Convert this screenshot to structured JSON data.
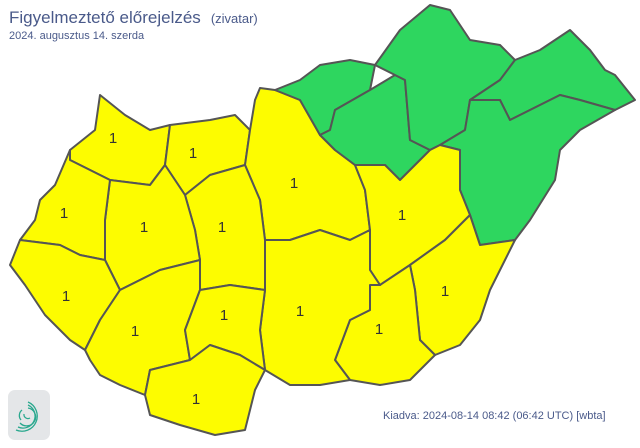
{
  "header": {
    "title": "Figyelmeztető előrejelzés",
    "phenomenon": "(zivatar)",
    "date": "2024. augusztus 14. szerda"
  },
  "footer": {
    "issued": "Kiadva: 2024-08-14 08:42 (06:42 UTC) [wbta]"
  },
  "colors": {
    "level_0": "#2ed65f",
    "level_1": "#fdfc00",
    "border": "#555555"
  },
  "logo": {
    "icon": "spiral-logo-icon"
  },
  "regions": [
    {
      "level": 1,
      "label": "1"
    },
    {
      "level": 1,
      "label": "1"
    },
    {
      "level": 1,
      "label": "1"
    },
    {
      "level": 0
    },
    {
      "level": 0
    },
    {
      "level": 0
    },
    {
      "level": 0
    },
    {
      "level": 0
    },
    {
      "level": 1,
      "label": "1"
    },
    {
      "level": 1,
      "label": "1"
    },
    {
      "level": 1,
      "label": "1"
    },
    {
      "level": 1,
      "label": "1"
    },
    {
      "level": 1,
      "label": "1"
    },
    {
      "level": 1,
      "label": "1"
    },
    {
      "level": 1,
      "label": "1"
    },
    {
      "level": 1,
      "label": "1"
    },
    {
      "level": 1,
      "label": "1"
    },
    {
      "level": 1,
      "label": "1"
    },
    {
      "level": 1,
      "label": "1"
    }
  ]
}
